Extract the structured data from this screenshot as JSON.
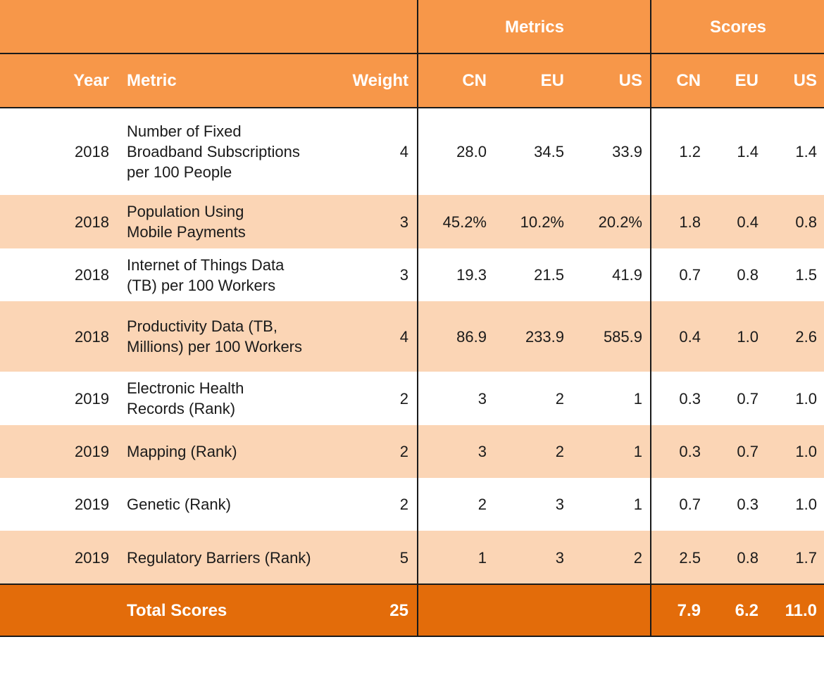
{
  "header_group": {
    "metrics": "Metrics",
    "scores": "Scores"
  },
  "columns": {
    "year": "Year",
    "metric": "Metric",
    "weight": "Weight",
    "m_cn": "CN",
    "m_eu": "EU",
    "m_us": "US",
    "s_cn": "CN",
    "s_eu": "EU",
    "s_us": "US"
  },
  "rows": [
    {
      "year": "2018",
      "metric": [
        "Number of Fixed",
        "Broadband Subscriptions",
        "per 100 People"
      ],
      "weight": "4",
      "m_cn": "28.0",
      "m_eu": "34.5",
      "m_us": "33.9",
      "s_cn": "1.2",
      "s_eu": "1.4",
      "s_us": "1.4"
    },
    {
      "year": "2018",
      "metric": [
        "Population Using",
        "Mobile Payments"
      ],
      "weight": "3",
      "m_cn": "45.2%",
      "m_eu": "10.2%",
      "m_us": "20.2%",
      "s_cn": "1.8",
      "s_eu": "0.4",
      "s_us": "0.8"
    },
    {
      "year": "2018",
      "metric": [
        "Internet of Things Data",
        "(TB) per 100 Workers"
      ],
      "weight": "3",
      "m_cn": "19.3",
      "m_eu": "21.5",
      "m_us": "41.9",
      "s_cn": "0.7",
      "s_eu": "0.8",
      "s_us": "1.5"
    },
    {
      "year": "2018",
      "metric": [
        "Productivity Data (TB,",
        "Millions) per 100 Workers"
      ],
      "weight": "4",
      "m_cn": "86.9",
      "m_eu": "233.9",
      "m_us": "585.9",
      "s_cn": "0.4",
      "s_eu": "1.0",
      "s_us": "2.6"
    },
    {
      "year": "2019",
      "metric": [
        "Electronic Health",
        "Records (Rank)"
      ],
      "weight": "2",
      "m_cn": "3",
      "m_eu": "2",
      "m_us": "1",
      "s_cn": "0.3",
      "s_eu": "0.7",
      "s_us": "1.0"
    },
    {
      "year": "2019",
      "metric": [
        "Mapping (Rank)"
      ],
      "weight": "2",
      "m_cn": "3",
      "m_eu": "2",
      "m_us": "1",
      "s_cn": "0.3",
      "s_eu": "0.7",
      "s_us": "1.0"
    },
    {
      "year": "2019",
      "metric": [
        "Genetic (Rank)"
      ],
      "weight": "2",
      "m_cn": "2",
      "m_eu": "3",
      "m_us": "1",
      "s_cn": "0.7",
      "s_eu": "0.3",
      "s_us": "1.0"
    },
    {
      "year": "2019",
      "metric": [
        "Regulatory Barriers (Rank)"
      ],
      "weight": "5",
      "m_cn": "1",
      "m_eu": "3",
      "m_us": "2",
      "s_cn": "2.5",
      "s_eu": "0.8",
      "s_us": "1.7"
    }
  ],
  "total": {
    "label": "Total Scores",
    "weight": "25",
    "s_cn": "7.9",
    "s_eu": "6.2",
    "s_us": "11.0"
  },
  "colors": {
    "header": "#f79749",
    "total": "#e36c0a",
    "shade": "#fbd5b5",
    "rule": "#1a1a1a"
  }
}
